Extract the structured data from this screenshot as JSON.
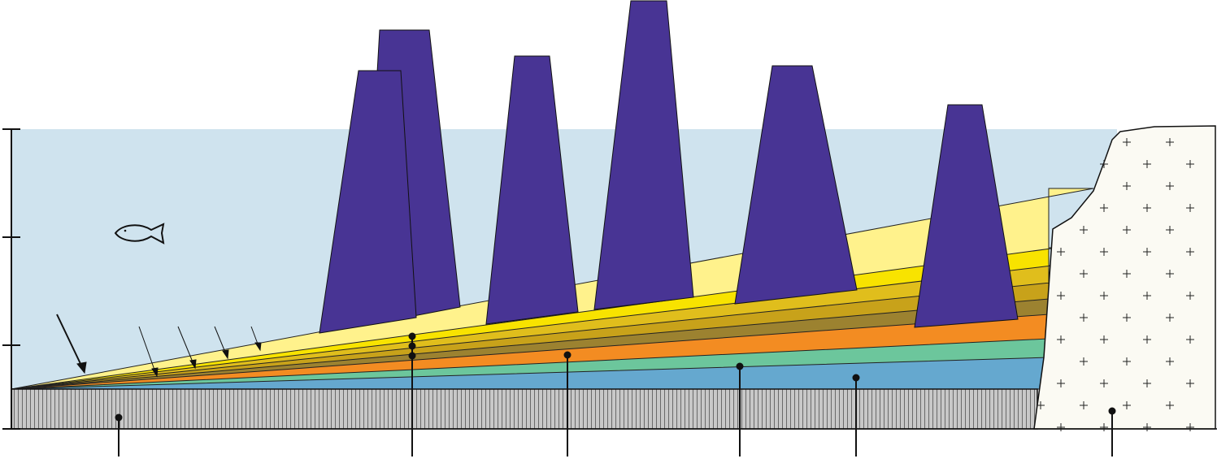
{
  "diagram": {
    "title": "",
    "labels": [],
    "colors": {
      "water": "#cfe3ee",
      "basement": "#c8c8c8",
      "basement_hatch": "#6a6a6a",
      "granite": "#fbfaf3",
      "granite_cross": "#222222",
      "dike": "#483494",
      "outline": "#111111"
    },
    "sediment_layer_colors": [
      "#65a8cf",
      "#6cc69c",
      "#f38c22",
      "#9c8230",
      "#c8a21a",
      "#e0be1c",
      "#f8e300",
      "#fff28c"
    ],
    "icons": {
      "fish": "fish-icon",
      "arrow": "arrow-icon"
    },
    "scale_bar_ticks": 4,
    "leader_callouts": 6
  }
}
